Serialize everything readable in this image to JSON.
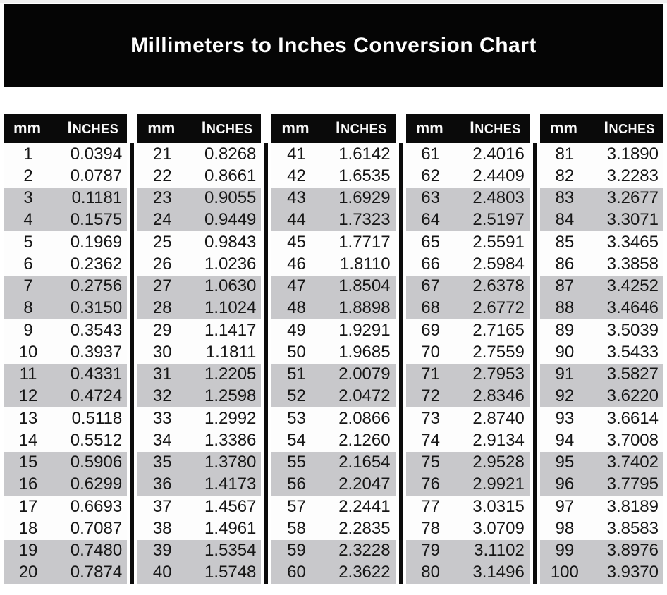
{
  "title": "Millimeters to Inches Conversion Chart",
  "table": {
    "headers": {
      "mm": "mm",
      "inches": "Inches"
    },
    "groups": [
      [
        [
          "1",
          "0.0394"
        ],
        [
          "2",
          "0.0787"
        ],
        [
          "3",
          "0.1181"
        ],
        [
          "4",
          "0.1575"
        ],
        [
          "5",
          "0.1969"
        ],
        [
          "6",
          "0.2362"
        ],
        [
          "7",
          "0.2756"
        ],
        [
          "8",
          "0.3150"
        ],
        [
          "9",
          "0.3543"
        ],
        [
          "10",
          "0.3937"
        ],
        [
          "11",
          "0.4331"
        ],
        [
          "12",
          "0.4724"
        ],
        [
          "13",
          "0.5118"
        ],
        [
          "14",
          "0.5512"
        ],
        [
          "15",
          "0.5906"
        ],
        [
          "16",
          "0.6299"
        ],
        [
          "17",
          "0.6693"
        ],
        [
          "18",
          "0.7087"
        ],
        [
          "19",
          "0.7480"
        ],
        [
          "20",
          "0.7874"
        ]
      ],
      [
        [
          "21",
          "0.8268"
        ],
        [
          "22",
          "0.8661"
        ],
        [
          "23",
          "0.9055"
        ],
        [
          "24",
          "0.9449"
        ],
        [
          "25",
          "0.9843"
        ],
        [
          "26",
          "1.0236"
        ],
        [
          "27",
          "1.0630"
        ],
        [
          "28",
          "1.1024"
        ],
        [
          "29",
          "1.1417"
        ],
        [
          "30",
          "1.1811"
        ],
        [
          "31",
          "1.2205"
        ],
        [
          "32",
          "1.2598"
        ],
        [
          "33",
          "1.2992"
        ],
        [
          "34",
          "1.3386"
        ],
        [
          "35",
          "1.3780"
        ],
        [
          "36",
          "1.4173"
        ],
        [
          "37",
          "1.4567"
        ],
        [
          "38",
          "1.4961"
        ],
        [
          "39",
          "1.5354"
        ],
        [
          "40",
          "1.5748"
        ]
      ],
      [
        [
          "41",
          "1.6142"
        ],
        [
          "42",
          "1.6535"
        ],
        [
          "43",
          "1.6929"
        ],
        [
          "44",
          "1.7323"
        ],
        [
          "45",
          "1.7717"
        ],
        [
          "46",
          "1.8110"
        ],
        [
          "47",
          "1.8504"
        ],
        [
          "48",
          "1.8898"
        ],
        [
          "49",
          "1.9291"
        ],
        [
          "50",
          "1.9685"
        ],
        [
          "51",
          "2.0079"
        ],
        [
          "52",
          "2.0472"
        ],
        [
          "53",
          "2.0866"
        ],
        [
          "54",
          "2.1260"
        ],
        [
          "55",
          "2.1654"
        ],
        [
          "56",
          "2.2047"
        ],
        [
          "57",
          "2.2441"
        ],
        [
          "58",
          "2.2835"
        ],
        [
          "59",
          "2.3228"
        ],
        [
          "60",
          "2.3622"
        ]
      ],
      [
        [
          "61",
          "2.4016"
        ],
        [
          "62",
          "2.4409"
        ],
        [
          "63",
          "2.4803"
        ],
        [
          "64",
          "2.5197"
        ],
        [
          "65",
          "2.5591"
        ],
        [
          "66",
          "2.5984"
        ],
        [
          "67",
          "2.6378"
        ],
        [
          "68",
          "2.6772"
        ],
        [
          "69",
          "2.7165"
        ],
        [
          "70",
          "2.7559"
        ],
        [
          "71",
          "2.7953"
        ],
        [
          "72",
          "2.8346"
        ],
        [
          "73",
          "2.8740"
        ],
        [
          "74",
          "2.9134"
        ],
        [
          "75",
          "2.9528"
        ],
        [
          "76",
          "2.9921"
        ],
        [
          "77",
          "3.0315"
        ],
        [
          "78",
          "3.0709"
        ],
        [
          "79",
          "3.1102"
        ],
        [
          "80",
          "3.1496"
        ]
      ],
      [
        [
          "81",
          "3.1890"
        ],
        [
          "82",
          "3.2283"
        ],
        [
          "83",
          "3.2677"
        ],
        [
          "84",
          "3.3071"
        ],
        [
          "85",
          "3.3465"
        ],
        [
          "86",
          "3.3858"
        ],
        [
          "87",
          "3.4252"
        ],
        [
          "88",
          "3.4646"
        ],
        [
          "89",
          "3.5039"
        ],
        [
          "90",
          "3.5433"
        ],
        [
          "91",
          "3.5827"
        ],
        [
          "92",
          "3.6220"
        ],
        [
          "93",
          "3.6614"
        ],
        [
          "94",
          "3.7008"
        ],
        [
          "95",
          "3.7402"
        ],
        [
          "96",
          "3.7795"
        ],
        [
          "97",
          "3.8189"
        ],
        [
          "98",
          "3.8583"
        ],
        [
          "99",
          "3.8976"
        ],
        [
          "100",
          "3.9370"
        ]
      ]
    ]
  },
  "colors": {
    "banner_bg": "#050505",
    "header_bg": "#0a0a0a",
    "stripe_gray": "#c8c8cb",
    "row_white": "#fdfdfd",
    "text": "#161616",
    "header_text": "#fafafa"
  }
}
